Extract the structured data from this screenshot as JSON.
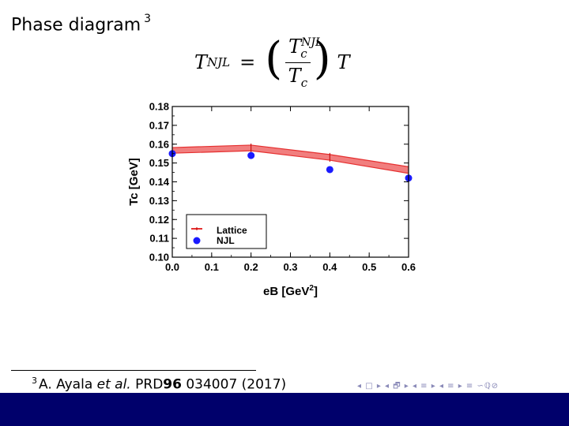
{
  "slide": {
    "title": "Phase diagram",
    "title_ref": "3"
  },
  "formula": {
    "lhs": "T",
    "lhs_sup": "NJL",
    "eq": "=",
    "num_base": "T",
    "num_sub": "c",
    "num_sup": "NJL",
    "den_base": "T",
    "den_sub": "c",
    "rhs": "T"
  },
  "chart_data": {
    "type": "line",
    "xlabel": "eB [GeV",
    "xlabel_sup": "2",
    "xlabel_end": "]",
    "ylabel": "Tc [GeV]",
    "xlim": [
      0.0,
      0.6
    ],
    "ylim": [
      0.1,
      0.18
    ],
    "x_ticks": [
      "0.0",
      "0.1",
      "0.2",
      "0.3",
      "0.4",
      "0.5",
      "0.6"
    ],
    "y_ticks": [
      "0.10",
      "0.11",
      "0.12",
      "0.13",
      "0.14",
      "0.15",
      "0.16",
      "0.17",
      "0.18"
    ],
    "series": [
      {
        "name": "Lattice",
        "kind": "band",
        "color": "#e53030",
        "fill": "#f07070",
        "x": [
          0.0,
          0.2,
          0.4,
          0.6
        ],
        "lower": [
          0.1552,
          0.1565,
          0.1515,
          0.1445
        ],
        "upper": [
          0.1582,
          0.1595,
          0.1545,
          0.148
        ]
      },
      {
        "name": "NJL",
        "kind": "scatter",
        "color": "#1a1aff",
        "x": [
          0.0,
          0.2,
          0.4,
          0.6
        ],
        "y": [
          0.155,
          0.154,
          0.1465,
          0.142
        ]
      }
    ],
    "legend_placement": "bottom-left"
  },
  "footnote": {
    "ref": "3",
    "author": "A. Ayala",
    "etal": "et al.",
    "journal": "PRD",
    "volume": "96",
    "rest": "034007 (2017)"
  },
  "navigation": {
    "symbols": "◂ □ ▸ ◂ 🗗 ▸ ◂ ≡ ▸ ◂ ≡ ▸   ≡   ∽ℚ⊘"
  },
  "colors": {
    "bottom_bar": "#00006b"
  }
}
